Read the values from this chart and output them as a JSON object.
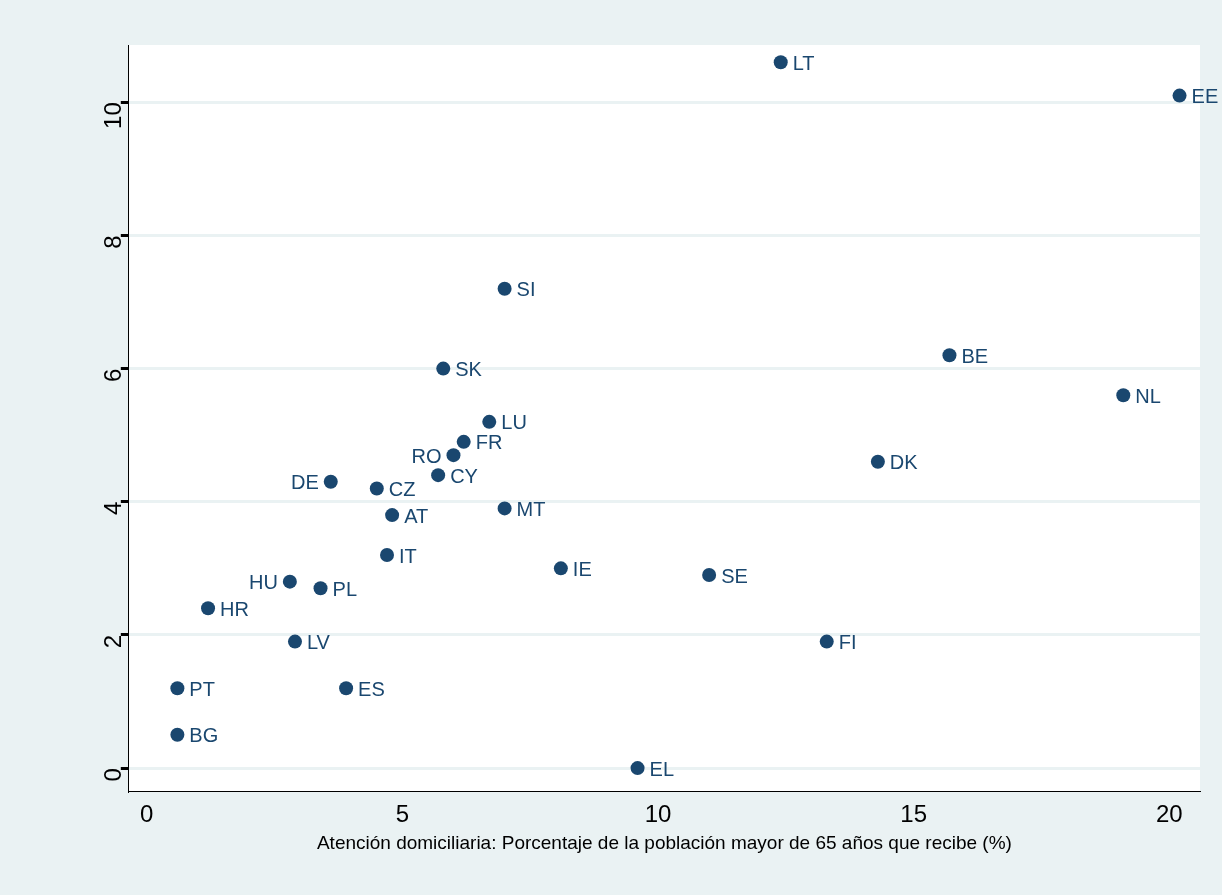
{
  "chart_data": {
    "type": "scatter",
    "xlabel": "Atención domiciliaria: Porcentaje de la población mayor de 65 años que recibe (%)",
    "xlim": [
      -0.35,
      20.6
    ],
    "xticks": [
      0,
      5,
      10,
      15,
      20
    ],
    "ylim": [
      -0.35,
      10.86
    ],
    "yticks": [
      0,
      2,
      4,
      6,
      8,
      10
    ],
    "grid": "y",
    "legend": false,
    "marker": "circle",
    "series": [
      {
        "color": "#1a476f",
        "x": [
          12.4,
          20.2,
          7.0,
          15.7,
          5.8,
          19.1,
          6.7,
          6.2,
          6.0,
          14.3,
          5.7,
          3.6,
          4.5,
          7.0,
          4.8,
          4.7,
          8.1,
          11.0,
          2.8,
          3.4,
          1.2,
          2.9,
          13.3,
          0.6,
          3.9,
          0.6,
          9.6
        ],
        "values": [
          10.6,
          10.1,
          7.2,
          6.2,
          6.0,
          5.6,
          5.2,
          4.9,
          4.7,
          4.6,
          4.4,
          4.3,
          4.2,
          3.9,
          3.8,
          3.2,
          3.0,
          2.9,
          2.8,
          2.7,
          2.4,
          1.9,
          1.9,
          1.2,
          1.2,
          0.5,
          0.0
        ],
        "value_labels": [
          "LT",
          "EE",
          "SI",
          "BE",
          "SK",
          "NL",
          "LU",
          "FR",
          "RO",
          "DK",
          "CY",
          "DE",
          "CZ",
          "MT",
          "AT",
          "IT",
          "IE",
          "SE",
          "HU",
          "PL",
          "HR",
          "LV",
          "FI",
          "PT",
          "ES",
          "BG",
          "EL"
        ]
      }
    ]
  }
}
